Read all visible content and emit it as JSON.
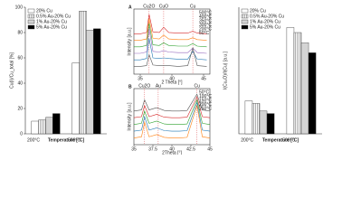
{
  "chart_data": [
    {
      "type": "bar",
      "xlabel": "Temperature [°C]",
      "ylabel": "Cu(I)/Cu_total [%]",
      "categories": [
        "200°C",
        "500°C"
      ],
      "ylim": [
        0,
        100
      ],
      "yticks": [
        0,
        20,
        40,
        60,
        80,
        100
      ],
      "legend": "top-left",
      "series": [
        {
          "name": "20% Cu",
          "color": "#ffffff",
          "pattern": "solid",
          "values": [
            10,
            56
          ]
        },
        {
          "name": "0.5% Au-20% Cu",
          "color": "#d9d9d9",
          "pattern": "hatch",
          "values": [
            11,
            97
          ]
        },
        {
          "name": "1% Au-20% Cu",
          "color": "#cfcfcf",
          "pattern": "dots",
          "values": [
            13,
            82
          ]
        },
        {
          "name": "5% Au-20% Cu",
          "color": "#000000",
          "pattern": "solid",
          "values": [
            16,
            83
          ]
        }
      ]
    },
    {
      "type": "line",
      "title": "A",
      "xlabel": "2 Theta [°]",
      "ylabel": "Intensity [a.u.]",
      "x": [
        34,
        35,
        36,
        36.4,
        37,
        38,
        38.7,
        39.5,
        41,
        42.5,
        43.3,
        44,
        45.5
      ],
      "xlim": [
        34,
        46
      ],
      "xticks": [
        35.0,
        40.0,
        45.0
      ],
      "ylim": [
        0,
        100
      ],
      "annotations": [
        {
          "text": "Cu2O",
          "x": 36.4
        },
        {
          "text": "CuO",
          "x": 38.7
        },
        {
          "text": "Cu",
          "x": 43.3
        }
      ],
      "series": [
        {
          "name": "500°C",
          "color": "#d62728",
          "values": [
            62,
            62,
            64,
            92,
            65,
            64,
            72,
            64,
            63,
            63,
            66,
            63,
            62
          ]
        },
        {
          "name": "400°C",
          "color": "#ff7f0e",
          "values": [
            52,
            52,
            54,
            85,
            55,
            54,
            60,
            54,
            53,
            53,
            56,
            53,
            52
          ]
        },
        {
          "name": "350°C",
          "color": "#2ca02c",
          "values": [
            42,
            42,
            44,
            78,
            45,
            44,
            48,
            44,
            43,
            43,
            47,
            43,
            42
          ]
        },
        {
          "name": "300°C",
          "color": "#9467bd",
          "values": [
            32,
            32,
            34,
            70,
            35,
            34,
            36,
            34,
            33,
            33,
            40,
            33,
            32
          ]
        },
        {
          "name": "200°C",
          "color": "#1f77b4",
          "values": [
            22,
            22,
            24,
            55,
            25,
            24,
            25,
            24,
            23,
            23,
            35,
            23,
            22
          ]
        },
        {
          "name": "50°C",
          "color": "#555555",
          "values": [
            12,
            12,
            13,
            30,
            14,
            13,
            13,
            13,
            12,
            13,
            40,
            13,
            12
          ]
        }
      ]
    },
    {
      "type": "line",
      "title": "B",
      "xlabel": "2Theta [°]",
      "ylabel": "Intensity [a.u.]",
      "x": [
        35,
        36,
        36.4,
        37,
        38,
        39,
        40,
        41,
        42,
        43.3,
        44,
        45
      ],
      "xlim": [
        35,
        45
      ],
      "xticks": [
        35.0,
        37.5,
        40.0,
        42.5,
        45.0
      ],
      "ylim": [
        0,
        100
      ],
      "annotations": [
        {
          "text": "Cu2O",
          "x": 36.4
        },
        {
          "text": "Cu",
          "x": 43.3
        },
        {
          "text": "Au",
          "x": 38.2
        }
      ],
      "series": [
        {
          "name": "50°C",
          "color": "#555555",
          "values": [
            60,
            62,
            80,
            62,
            66,
            61,
            60,
            60,
            61,
            90,
            62,
            60
          ]
        },
        {
          "name": "100°C",
          "color": "#d62728",
          "values": [
            48,
            50,
            70,
            50,
            54,
            49,
            48,
            48,
            49,
            85,
            50,
            48
          ]
        },
        {
          "name": "150°C",
          "color": "#2ca02c",
          "values": [
            36,
            38,
            60,
            38,
            42,
            37,
            36,
            36,
            37,
            80,
            38,
            36
          ]
        },
        {
          "name": "200°C",
          "color": "#1f77b4",
          "values": [
            24,
            26,
            50,
            26,
            30,
            25,
            24,
            24,
            25,
            75,
            26,
            24
          ]
        },
        {
          "name": "250°C",
          "color": "#ff7f0e",
          "values": [
            12,
            14,
            40,
            14,
            18,
            13,
            12,
            12,
            13,
            70,
            14,
            12
          ]
        }
      ]
    },
    {
      "type": "bar",
      "xlabel": "Temperature [°C]",
      "ylabel": "I(Cu₂O)/I(Cu) [a.u.]",
      "categories": [
        "200°C",
        "500°C"
      ],
      "ylim": [
        0,
        5
      ],
      "legend": "top-left",
      "series": [
        {
          "name": "20% Cu",
          "color": "#ffffff",
          "pattern": "solid",
          "values": [
            1.3,
            4.2
          ]
        },
        {
          "name": "0.5% Au-20% Cu",
          "color": "#d9d9d9",
          "pattern": "hatch",
          "values": [
            1.2,
            4.0
          ]
        },
        {
          "name": "1% Au-20% Cu",
          "color": "#cfcfcf",
          "pattern": "dots",
          "values": [
            0.9,
            3.6
          ]
        },
        {
          "name": "5% Au-20% Cu",
          "color": "#000000",
          "pattern": "solid",
          "values": [
            0.8,
            3.2
          ]
        }
      ]
    }
  ]
}
